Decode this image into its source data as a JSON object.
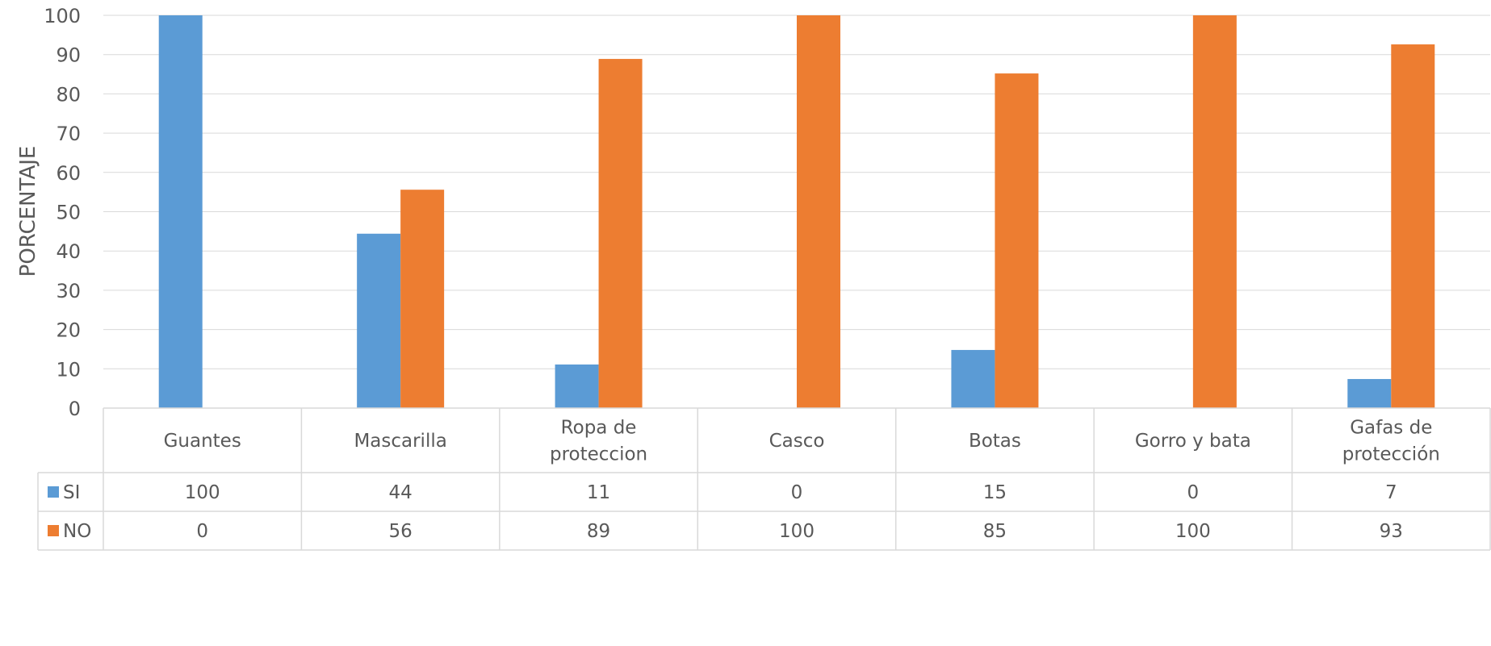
{
  "chart_data": {
    "type": "bar",
    "title": "",
    "xlabel": "",
    "ylabel": "PORCENTAJE",
    "ylim": [
      0,
      100
    ],
    "yticks": [
      0,
      10,
      20,
      30,
      40,
      50,
      60,
      70,
      80,
      90,
      100
    ],
    "grid": true,
    "legend": "table-left",
    "categories": [
      [
        "Guantes"
      ],
      [
        "Mascarilla"
      ],
      [
        "Ropa de",
        "proteccion"
      ],
      [
        "Casco"
      ],
      [
        "Botas"
      ],
      [
        "Gorro y bata"
      ],
      [
        "Gafas de",
        "protección"
      ]
    ],
    "series": [
      {
        "name": "SI",
        "color": "#5b9bd5",
        "values": [
          100,
          44.4,
          11.1,
          0,
          14.8,
          0,
          7.4
        ],
        "labels": [
          "100",
          "44",
          "11",
          "0",
          "15",
          "0",
          "7"
        ]
      },
      {
        "name": "NO",
        "color": "#ed7d31",
        "values": [
          0,
          55.6,
          88.9,
          100,
          85.2,
          100,
          92.6
        ],
        "labels": [
          "0",
          "56",
          "89",
          "100",
          "85",
          "100",
          "93"
        ]
      }
    ]
  }
}
